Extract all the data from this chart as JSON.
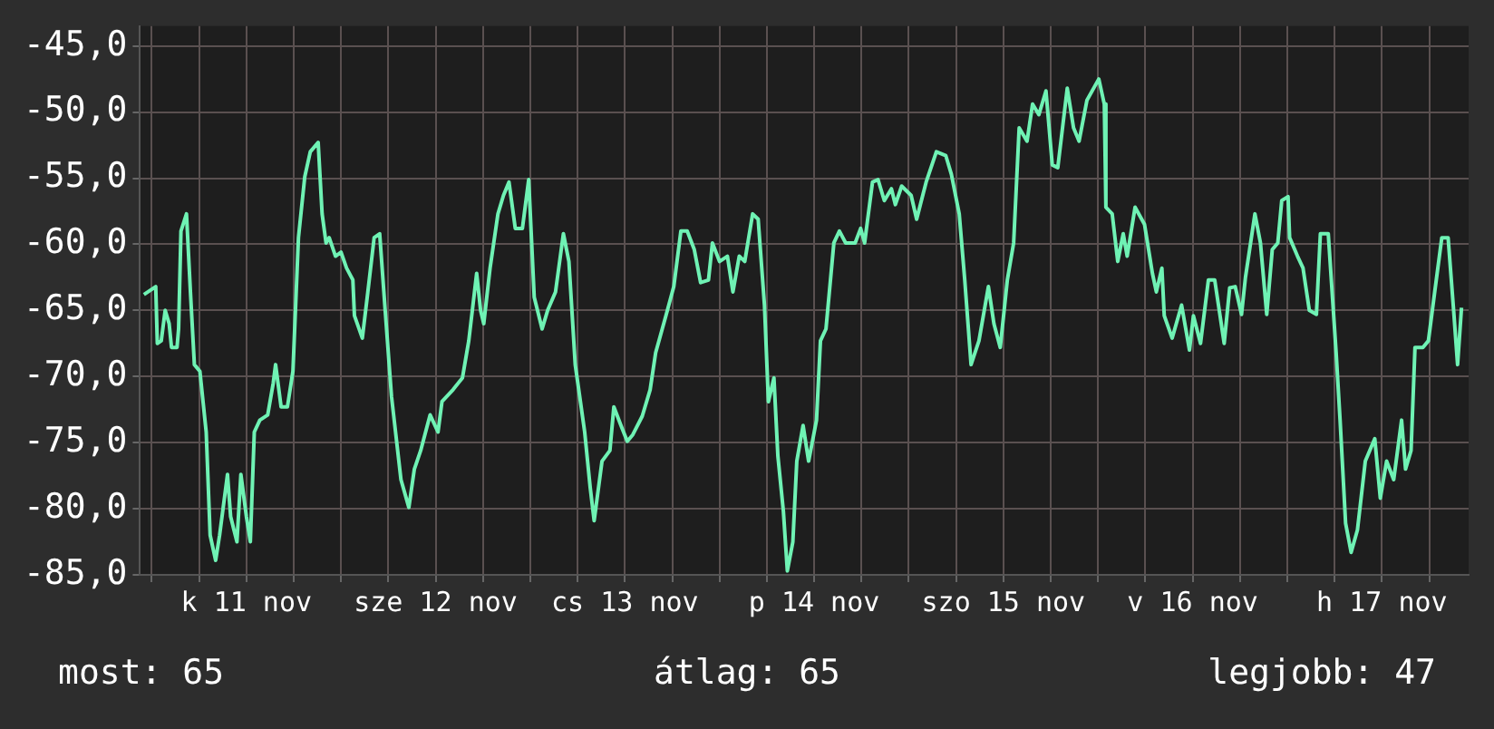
{
  "chart_data": {
    "type": "line",
    "color": "#6ff2b4",
    "marker": "none",
    "line_style": "solid",
    "grid": true,
    "xlim": [
      "--11-10T22:30",
      "--11-17T23:00"
    ],
    "ylim": [
      -85,
      -43.5
    ],
    "xticks": [
      {
        "value": "--11-11T00:00",
        "label": null
      },
      {
        "value": "--11-11T06:00",
        "label": null
      },
      {
        "value": "--11-11T12:00",
        "label": "k 11 nov"
      },
      {
        "value": "--11-11T18:00",
        "label": null
      },
      {
        "value": "--11-12T00:00",
        "label": null
      },
      {
        "value": "--11-12T06:00",
        "label": null
      },
      {
        "value": "--11-12T12:00",
        "label": "sze 12 nov"
      },
      {
        "value": "--11-12T18:00",
        "label": null
      },
      {
        "value": "--11-13T00:00",
        "label": null
      },
      {
        "value": "--11-13T06:00",
        "label": null
      },
      {
        "value": "--11-13T12:00",
        "label": "cs 13 nov"
      },
      {
        "value": "--11-13T18:00",
        "label": null
      },
      {
        "value": "--11-14T00:00",
        "label": null
      },
      {
        "value": "--11-14T06:00",
        "label": null
      },
      {
        "value": "--11-14T12:00",
        "label": "p 14 nov"
      },
      {
        "value": "--11-14T18:00",
        "label": null
      },
      {
        "value": "--11-15T00:00",
        "label": null
      },
      {
        "value": "--11-15T06:00",
        "label": null
      },
      {
        "value": "--11-15T12:00",
        "label": "szo 15 nov"
      },
      {
        "value": "--11-15T18:00",
        "label": null
      },
      {
        "value": "--11-16T00:00",
        "label": null
      },
      {
        "value": "--11-16T06:00",
        "label": null
      },
      {
        "value": "--11-16T12:00",
        "label": "v 16 nov"
      },
      {
        "value": "--11-16T18:00",
        "label": null
      },
      {
        "value": "--11-17T00:00",
        "label": null
      },
      {
        "value": "--11-17T06:00",
        "label": null
      },
      {
        "value": "--11-17T12:00",
        "label": "h 17 nov"
      },
      {
        "value": "--11-17T18:00",
        "label": null
      }
    ],
    "yticks": [
      {
        "value": -85,
        "label": "-85,0"
      },
      {
        "value": -80,
        "label": "-80,0"
      },
      {
        "value": -75,
        "label": "-75,0"
      },
      {
        "value": -70,
        "label": "-70,0"
      },
      {
        "value": -65,
        "label": "-65,0"
      },
      {
        "value": -60,
        "label": "-60,0"
      },
      {
        "value": -55,
        "label": "-55,0"
      },
      {
        "value": -50,
        "label": "-50,0"
      },
      {
        "value": -45,
        "label": "-45,0"
      }
    ],
    "x": [
      "--11-10T23:00",
      "--11-11T00:30",
      "--11-11T00:42",
      "--11-11T01:12",
      "--11-11T01:42",
      "--11-11T02:12",
      "--11-11T02:30",
      "--11-11T03:12",
      "--11-11T03:24",
      "--11-11T03:42",
      "--11-11T04:24",
      "--11-11T04:54",
      "--11-11T05:24",
      "--11-11T06:06",
      "--11-11T06:54",
      "--11-11T07:24",
      "--11-11T08:06",
      "--11-11T08:36",
      "--11-11T09:36",
      "--11-11T10:00",
      "--11-11T10:48",
      "--11-11T11:18",
      "--11-11T12:00",
      "--11-11T12:30",
      "--11-11T13:00",
      "--11-11T13:42",
      "--11-11T14:42",
      "--11-11T15:24",
      "--11-11T15:42",
      "--11-11T16:24",
      "--11-11T17:12",
      "--11-11T17:54",
      "--11-11T18:36",
      "--11-11T19:24",
      "--11-11T20:06",
      "--11-11T21:06",
      "--11-11T21:36",
      "--11-11T22:06",
      "--11-11T22:30",
      "--11-11T23:18",
      "--11-12T00:00",
      "--11-12T00:42",
      "--11-12T01:30",
      "--11-12T01:42",
      "--11-12T02:42",
      "--11-12T03:24",
      "--11-12T04:12",
      "--11-12T04:54",
      "--11-12T05:36",
      "--11-12T06:24",
      "--11-12T07:36",
      "--11-12T08:36",
      "--11-12T09:18",
      "--11-12T10:06",
      "--11-12T11:18",
      "--11-12T12:18",
      "--11-12T12:48",
      "--11-12T14:12",
      "--11-12T15:24",
      "--11-12T16:12",
      "--11-12T17:12",
      "--11-12T17:42",
      "--11-12T18:06",
      "--11-12T18:54",
      "--11-12T19:54",
      "--11-12T20:36",
      "--11-12T21:18",
      "--11-12T22:06",
      "--11-12T23:00",
      "--11-12T23:48",
      "--11-13T00:30",
      "--11-13T01:30",
      "--11-13T02:12",
      "--11-13T03:12",
      "--11-13T04:12",
      "--11-13T04:54",
      "--11-13T05:42",
      "--11-13T06:54",
      "--11-13T07:36",
      "--11-13T08:06",
      "--11-13T09:06",
      "--11-13T10:06",
      "--11-13T10:36",
      "--11-13T11:30",
      "--11-13T12:18",
      "--11-13T13:00",
      "--11-13T14:12",
      "--11-13T15:12",
      "--11-13T15:54",
      "--11-13T17:12",
      "--11-13T18:12",
      "--11-13T19:06",
      "--11-13T19:54",
      "--11-13T20:48",
      "--11-13T21:36",
      "--11-13T22:36",
      "--11-13T23:06",
      "--11-14T00:00",
      "--11-14T01:00",
      "--11-14T01:42",
      "--11-14T02:30",
      "--11-14T03:12",
      "--11-14T04:12",
      "--11-14T04:54",
      "--11-14T05:42",
      "--11-14T06:12",
      "--11-14T06:54",
      "--11-14T07:24",
      "--11-14T08:06",
      "--11-14T08:36",
      "--11-14T09:18",
      "--11-14T09:48",
      "--11-14T10:36",
      "--11-14T11:18",
      "--11-14T12:18",
      "--11-14T12:48",
      "--11-14T13:30",
      "--11-14T14:30",
      "--11-14T15:12",
      "--11-14T16:00",
      "--11-14T17:12",
      "--11-14T17:54",
      "--11-14T18:24",
      "--11-14T19:24",
      "--11-14T20:06",
      "--11-14T20:54",
      "--11-14T21:48",
      "--11-14T22:18",
      "--11-14T23:06",
      "--11-15T00:18",
      "--11-15T01:00",
      "--11-15T02:12",
      "--11-15T03:30",
      "--11-15T04:42",
      "--11-15T05:24",
      "--11-15T06:24",
      "--11-15T07:06",
      "--11-15T07:54",
      "--11-15T08:54",
      "--11-15T10:06",
      "--11-15T10:48",
      "--11-15T11:36",
      "--11-15T12:30",
      "--11-15T13:18",
      "--11-15T14:00",
      "--11-15T15:00",
      "--11-15T15:42",
      "--11-15T16:30",
      "--11-15T17:24",
      "--11-15T18:12",
      "--11-15T18:54",
      "--11-15T20:06",
      "--11-15T20:54",
      "--11-15T21:36",
      "--11-15T22:36",
      "--11-16T00:06",
      "--11-16T00:48",
      "--11-16T01:00",
      "--11-16T01:48",
      "--11-16T02:30",
      "--11-16T03:12",
      "--11-16T03:42",
      "--11-16T04:42",
      "--11-16T05:54",
      "--11-16T06:54",
      "--11-16T07:24",
      "--11-16T08:06",
      "--11-16T08:24",
      "--11-16T09:24",
      "--11-16T10:36",
      "--11-16T11:36",
      "--11-16T12:06",
      "--11-16T13:00",
      "--11-16T14:00",
      "--11-16T14:48",
      "--11-16T16:00",
      "--11-16T16:42",
      "--11-16T17:24",
      "--11-16T18:12",
      "--11-16T18:42",
      "--11-16T19:54",
      "--11-16T20:36",
      "--11-16T21:24",
      "--11-16T22:06",
      "--11-16T22:48",
      "--11-16T23:18",
      "--11-17T00:06",
      "--11-17T00:18",
      "--11-17T01:18",
      "--11-17T02:00",
      "--11-17T02:48",
      "--11-17T03:42",
      "--11-17T04:12",
      "--11-17T05:12",
      "--11-17T06:12",
      "--11-17T06:42",
      "--11-17T07:24",
      "--11-17T08:06",
      "--11-17T08:54",
      "--11-17T09:54",
      "--11-17T11:06",
      "--11-17T11:48",
      "--11-17T12:36",
      "--11-17T13:30",
      "--11-17T14:30",
      "--11-17T15:00",
      "--11-17T15:42",
      "--11-17T16:12",
      "--11-17T17:12",
      "--11-17T17:54",
      "--11-17T18:42",
      "--11-17T19:36",
      "--11-17T20:24",
      "--11-17T21:06",
      "--11-17T21:36",
      "--11-17T22:06"
    ],
    "values": [
      -63.8,
      -63.2,
      -67.5,
      -67.3,
      -65,
      -66,
      -67.8,
      -67.8,
      -66.4,
      -59,
      -57.7,
      -63.6,
      -69.1,
      -69.6,
      -74.2,
      -82,
      -83.9,
      -82,
      -77.4,
      -80.6,
      -82.5,
      -77.4,
      -80.6,
      -82.5,
      -74.2,
      -73.3,
      -72.9,
      -70.5,
      -69.1,
      -72.3,
      -72.3,
      -69.6,
      -59.5,
      -54.9,
      -53,
      -52.3,
      -57.7,
      -59.9,
      -59.5,
      -60.9,
      -60.6,
      -61.8,
      -62.7,
      -65.4,
      -67.1,
      -63.6,
      -59.5,
      -59.2,
      -65,
      -71.5,
      -77.8,
      -79.9,
      -77,
      -75.6,
      -72.9,
      -74.2,
      -71.9,
      -71,
      -70.1,
      -67.3,
      -62.2,
      -65,
      -66,
      -61.8,
      -57.7,
      -56.3,
      -55.3,
      -58.8,
      -58.8,
      -55.1,
      -64,
      -66.4,
      -65,
      -63.6,
      -59.2,
      -61.3,
      -69.1,
      -74.2,
      -78.4,
      -80.9,
      -76.4,
      -75.6,
      -72.3,
      -73.7,
      -74.9,
      -74.4,
      -73,
      -71,
      -68.2,
      -65.4,
      -63.2,
      -59,
      -59,
      -60.4,
      -62.9,
      -62.7,
      -59.9,
      -61.3,
      -60.9,
      -63.6,
      -60.9,
      -61.3,
      -57.7,
      -58.1,
      -64.6,
      -71.9,
      -70.1,
      -76,
      -80.2,
      -84.7,
      -82.5,
      -76.4,
      -73.7,
      -76.4,
      -73.3,
      -67.3,
      -66.4,
      -59.9,
      -59,
      -59.9,
      -59.9,
      -58.8,
      -59.9,
      -55.3,
      -55.1,
      -56.7,
      -55.8,
      -57,
      -55.6,
      -56.3,
      -58.1,
      -55.3,
      -53,
      -53.3,
      -54.7,
      -57.7,
      -62.7,
      -69.1,
      -67.3,
      -63.2,
      -66,
      -67.8,
      -62.7,
      -59.9,
      -51.2,
      -52.2,
      -49.4,
      -50.2,
      -48.4,
      -54,
      -54.2,
      -48.2,
      -51.2,
      -52.2,
      -49.1,
      -47.5,
      -49.4,
      -57.2,
      -57.7,
      -61.3,
      -59.2,
      -60.9,
      -57.2,
      -58.5,
      -62.2,
      -63.6,
      -61.8,
      -65.4,
      -67.1,
      -64.6,
      -68,
      -65.4,
      -67.5,
      -62.7,
      -62.7,
      -67.5,
      -63.3,
      -63.2,
      -65.3,
      -62.5,
      -57.7,
      -59.9,
      -65.3,
      -60.4,
      -59.9,
      -56.7,
      -56.4,
      -59.5,
      -60.9,
      -61.8,
      -65,
      -65.3,
      -59.2,
      -59.2,
      -68.2,
      -73.3,
      -81.1,
      -83.3,
      -81.6,
      -76.4,
      -74.7,
      -79.2,
      -76.4,
      -77.8,
      -73.3,
      -77,
      -75.6,
      -67.8,
      -67.8,
      -67.3,
      -63.6,
      -59.5,
      -59.5,
      -65,
      -69.1,
      -64.8
    ],
    "annotations": [
      "most: 65",
      "átlag: 65",
      "legjobb: 47"
    ]
  }
}
